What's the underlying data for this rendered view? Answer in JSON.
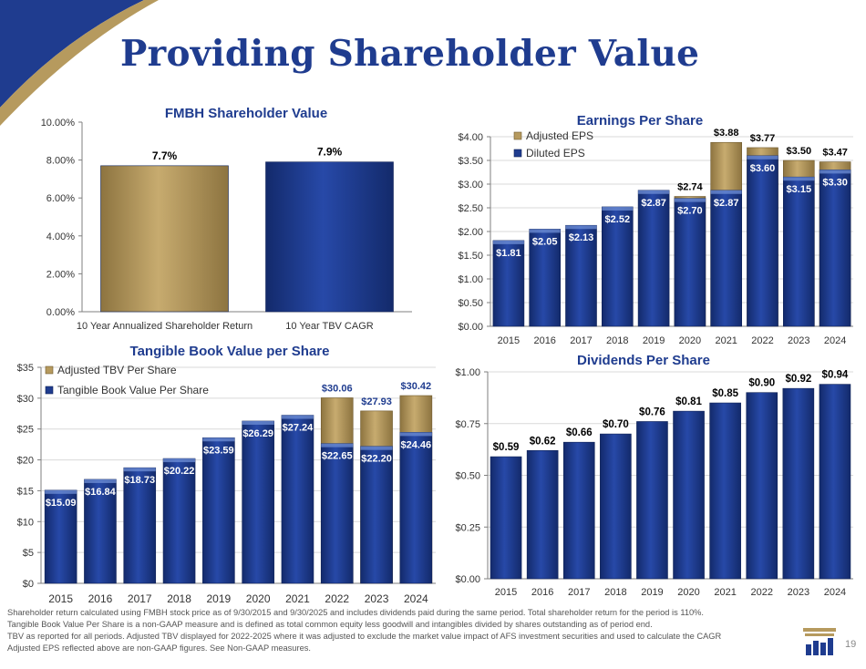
{
  "page": {
    "title": "Providing Shareholder Value",
    "page_number": "19",
    "colors": {
      "navy": "#1f3c8f",
      "gold": "#b69a5e",
      "gridline": "#d9d9d9"
    }
  },
  "footnotes": [
    "Shareholder return calculated using FMBH stock price as of 9/30/2015 and 9/30/2025 and includes dividends paid during the same period. Total shareholder return for the period is 110%.",
    "Tangible Book Value Per Share  is a non-GAAP measure and is defined as total common equity less goodwill and intangibles divided by shares outstanding as of period end.",
    "TBV as reported for all periods.  Adjusted TBV displayed for 2022-2025 where it was adjusted to exclude the market value impact of AFS investment securities and used to calculate the CAGR",
    "Adjusted EPS reflected above are non-GAAP figures.  See Non-GAAP measures."
  ],
  "chart_data": [
    {
      "id": "shareholder",
      "type": "bar",
      "title": "FMBH Shareholder Value",
      "categories": [
        "10 Year Annualized Shareholder Return",
        "10 Year TBV CAGR"
      ],
      "values": [
        7.7,
        7.9
      ],
      "labels": [
        "7.7%",
        "7.9%"
      ],
      "bar_colors": [
        "#b69a5e",
        "#1f3c8f"
      ],
      "ylim": [
        0,
        10
      ],
      "yticks": [
        0,
        2,
        4,
        6,
        8,
        10
      ],
      "ytick_labels": [
        "0.00%",
        "2.00%",
        "4.00%",
        "6.00%",
        "8.00%",
        "10.00%"
      ]
    },
    {
      "id": "eps",
      "type": "bar",
      "title": "Earnings Per Share",
      "categories": [
        "2015",
        "2016",
        "2017",
        "2018",
        "2019",
        "2020",
        "2021",
        "2022",
        "2023",
        "2024"
      ],
      "series": [
        {
          "name": "Diluted EPS",
          "values": [
            1.81,
            2.05,
            2.13,
            2.52,
            2.87,
            2.7,
            2.87,
            3.6,
            3.15,
            3.3
          ],
          "labels": [
            "$1.81",
            "$2.05",
            "$2.13",
            "$2.52",
            "$2.87",
            "$2.70",
            "$2.87",
            "$3.60",
            "$3.15",
            "$3.30"
          ]
        },
        {
          "name": "Adjusted EPS",
          "values": [
            null,
            null,
            null,
            null,
            null,
            2.74,
            3.88,
            3.77,
            3.5,
            3.47
          ],
          "labels": [
            "",
            "",
            "",
            "",
            "",
            "$2.74",
            "$3.88",
            "$3.77",
            "$3.50",
            "$3.47"
          ]
        }
      ],
      "legend": [
        "Adjusted EPS",
        "Diluted EPS"
      ],
      "ylim": [
        0,
        4
      ],
      "yticks": [
        0,
        0.5,
        1,
        1.5,
        2,
        2.5,
        3,
        3.5,
        4
      ],
      "ytick_labels": [
        "$0.00",
        "$0.50",
        "$1.00",
        "$1.50",
        "$2.00",
        "$2.50",
        "$3.00",
        "$3.50",
        "$4.00"
      ]
    },
    {
      "id": "tbv",
      "type": "bar",
      "title": "Tangible Book Value per Share",
      "categories": [
        "2015",
        "2016",
        "2017",
        "2018",
        "2019",
        "2020",
        "2021",
        "2022",
        "2023",
        "2024"
      ],
      "series": [
        {
          "name": "Tangible Book Value Per Share",
          "values": [
            15.09,
            16.84,
            18.73,
            20.22,
            23.59,
            26.29,
            27.24,
            22.65,
            22.2,
            24.46
          ],
          "labels": [
            "$15.09",
            "$16.84",
            "$18.73",
            "$20.22",
            "$23.59",
            "$26.29",
            "$27.24",
            "$22.65",
            "$22.20",
            "$24.46"
          ]
        },
        {
          "name": "Adjusted TBV Per Share",
          "values": [
            null,
            null,
            null,
            null,
            null,
            null,
            null,
            30.06,
            27.93,
            30.42
          ],
          "labels": [
            "",
            "",
            "",
            "",
            "",
            "",
            "",
            "$30.06",
            "$27.93",
            "$30.42"
          ]
        }
      ],
      "legend": [
        "Adjusted TBV Per Share",
        "Tangible Book Value Per Share"
      ],
      "ylim": [
        0,
        35
      ],
      "yticks": [
        0,
        5,
        10,
        15,
        20,
        25,
        30,
        35
      ],
      "ytick_labels": [
        "$0",
        "$5",
        "$10",
        "$15",
        "$20",
        "$25",
        "$30",
        "$35"
      ]
    },
    {
      "id": "dividends",
      "type": "bar",
      "title": "Dividends Per Share",
      "categories": [
        "2015",
        "2016",
        "2017",
        "2018",
        "2019",
        "2020",
        "2021",
        "2022",
        "2023",
        "2024"
      ],
      "values": [
        0.59,
        0.62,
        0.66,
        0.7,
        0.76,
        0.81,
        0.85,
        0.9,
        0.92,
        0.94
      ],
      "labels": [
        "$0.59",
        "$0.62",
        "$0.66",
        "$0.70",
        "$0.76",
        "$0.81",
        "$0.85",
        "$0.90",
        "$0.92",
        "$0.94"
      ],
      "ylim": [
        0,
        1
      ],
      "yticks": [
        0,
        0.25,
        0.5,
        0.75,
        1
      ],
      "ytick_labels": [
        "$0.00",
        "$0.25",
        "$0.50",
        "$0.75",
        "$1.00"
      ]
    }
  ]
}
